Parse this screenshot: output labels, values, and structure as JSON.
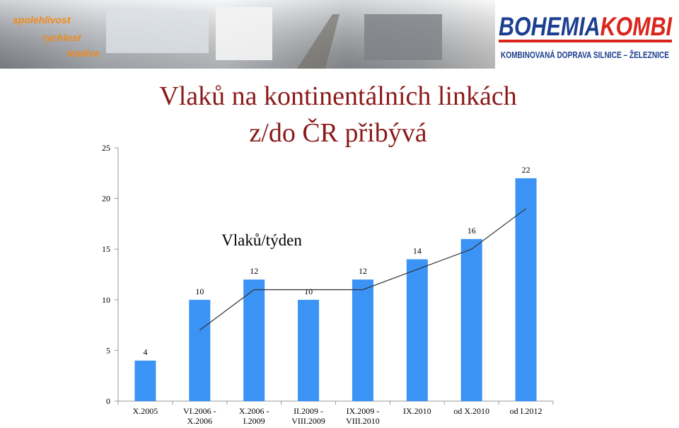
{
  "header": {
    "tagline": [
      "spolehlivost",
      "rychlost",
      "tradice"
    ],
    "logo": {
      "part1": "BOHEMIA",
      "part2": "KOMBI",
      "subtitle": "KOMBINOVANÁ DOPRAVA SILNICE – ŽELEZNICE"
    }
  },
  "chart_data": {
    "type": "bar",
    "title": [
      "Vlaků na kontinentálních linkách",
      "z/do ČR přibývá"
    ],
    "annotation": "Vlaků/týden",
    "categories": [
      "X.2005",
      "VI.2006 -\nX.2006",
      "X.2006 -\nI.2009",
      "II.2009 -\nVIII.2009",
      "IX.2009 -\nVIII.2010",
      "IX.2010",
      "od X.2010",
      "od I.2012"
    ],
    "values": [
      4,
      10,
      12,
      10,
      12,
      14,
      16,
      22
    ],
    "color": "#3b93f5",
    "trendline": {
      "values": [
        null,
        7,
        11,
        11,
        11,
        13,
        15,
        19
      ],
      "color": "#333333"
    },
    "ylim": [
      0,
      25
    ],
    "yticks": [
      0,
      5,
      10,
      15,
      20,
      25
    ]
  }
}
